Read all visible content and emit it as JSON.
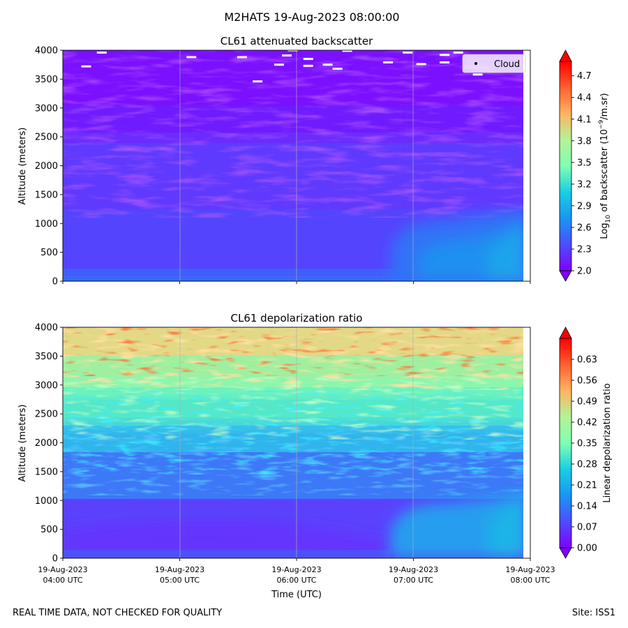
{
  "figure": {
    "suptitle": "M2HATS 19-Aug-2023 08:00:00",
    "footer_left": "REAL TIME DATA, NOT CHECKED FOR QUALITY",
    "footer_right": "Site: ISS1"
  },
  "chart_data": [
    {
      "type": "heatmap",
      "title": "CL61 attenuated backscatter",
      "xlabel": "",
      "ylabel": "Altitude (meters)",
      "y_ticks": [
        0,
        500,
        1000,
        1500,
        2000,
        2500,
        3000,
        3500,
        4000
      ],
      "ylim": [
        0,
        4000
      ],
      "x_ticks": [
        "19-Aug-2023 04:00 UTC",
        "19-Aug-2023 05:00 UTC",
        "19-Aug-2023 06:00 UTC",
        "19-Aug-2023 07:00 UTC",
        "19-Aug-2023 08:00 UTC"
      ],
      "x_tick_labels_shown": false,
      "grid": "vertical lines at hourly ticks",
      "colormap": "rainbow",
      "colorbar_label_parts": [
        "Log",
        "10",
        " of backscatter (10",
        "−9",
        "/m.sr)"
      ],
      "colorbar_ticks": [
        2.0,
        2.3,
        2.6,
        2.9,
        3.2,
        3.5,
        3.8,
        4.1,
        4.4,
        4.7
      ],
      "colorbar_range": [
        2.0,
        4.9
      ],
      "colorbar_extend": "both",
      "legend": {
        "location": "upper right",
        "entries": [
          "Cloud"
        ]
      },
      "cloud_points_approx": [
        {
          "time": "04:20",
          "altitude": 3960
        },
        {
          "time": "04:12",
          "altitude": 3720
        },
        {
          "time": "05:06",
          "altitude": 3880
        },
        {
          "time": "05:32",
          "altitude": 3880
        },
        {
          "time": "05:40",
          "altitude": 3460
        },
        {
          "time": "05:51",
          "altitude": 3750
        },
        {
          "time": "05:55",
          "altitude": 3910
        },
        {
          "time": "05:58",
          "altitude": 4000
        },
        {
          "time": "06:06",
          "altitude": 3850
        },
        {
          "time": "06:06",
          "altitude": 3730
        },
        {
          "time": "06:16",
          "altitude": 3750
        },
        {
          "time": "06:21",
          "altitude": 3680
        },
        {
          "time": "06:26",
          "altitude": 3990
        },
        {
          "time": "06:47",
          "altitude": 3790
        },
        {
          "time": "06:57",
          "altitude": 3960
        },
        {
          "time": "07:04",
          "altitude": 3760
        },
        {
          "time": "07:16",
          "altitude": 3920
        },
        {
          "time": "07:16",
          "altitude": 3790
        },
        {
          "time": "07:23",
          "altitude": 3960
        },
        {
          "time": "07:33",
          "altitude": 3580
        }
      ],
      "field_description_levels": [
        {
          "region": "0-300 m all times",
          "value": 2.5
        },
        {
          "region": "300-3000 m 04:00-06:50",
          "value": 2.35
        },
        {
          "region": "0-1000 m 07:00-08:00",
          "value": 2.7
        },
        {
          "region": "3000-4000 m",
          "value": 2.05
        }
      ]
    },
    {
      "type": "heatmap",
      "title": "CL61 depolarization ratio",
      "xlabel": "Time (UTC)",
      "ylabel": "Altitude (meters)",
      "y_ticks": [
        0,
        500,
        1000,
        1500,
        2000,
        2500,
        3000,
        3500,
        4000
      ],
      "ylim": [
        0,
        4000
      ],
      "x_ticks": [
        "19-Aug-2023 04:00 UTC",
        "19-Aug-2023 05:00 UTC",
        "19-Aug-2023 06:00 UTC",
        "19-Aug-2023 07:00 UTC",
        "19-Aug-2023 08:00 UTC"
      ],
      "x_tick_labels": [
        {
          "date": "19-Aug-2023",
          "time": "04:00 UTC"
        },
        {
          "date": "19-Aug-2023",
          "time": "05:00 UTC"
        },
        {
          "date": "19-Aug-2023",
          "time": "06:00 UTC"
        },
        {
          "date": "19-Aug-2023",
          "time": "07:00 UTC"
        },
        {
          "date": "19-Aug-2023",
          "time": "08:00 UTC"
        }
      ],
      "grid": "vertical lines at hourly ticks",
      "colormap": "rainbow",
      "colorbar_label": "Linear depolarization ratio",
      "colorbar_ticks": [
        "0.00",
        "0.07",
        "0.14",
        "0.21",
        "0.28",
        "0.35",
        "0.42",
        "0.49",
        "0.56",
        "0.63"
      ],
      "colorbar_range": [
        0.0,
        0.7
      ],
      "colorbar_extend": "both",
      "field_description_levels": [
        {
          "region": "0-500 m",
          "value": 0.08
        },
        {
          "region": "500-1500 m",
          "value": 0.12
        },
        {
          "region": "1500-2500 m",
          "value": 0.22
        },
        {
          "region": "2500-3200 m",
          "value": 0.36
        },
        {
          "region": "3200-4000 m",
          "value": 0.5
        },
        {
          "region": "0-1000 m 07:00-08:00",
          "value": 0.16
        }
      ]
    }
  ]
}
